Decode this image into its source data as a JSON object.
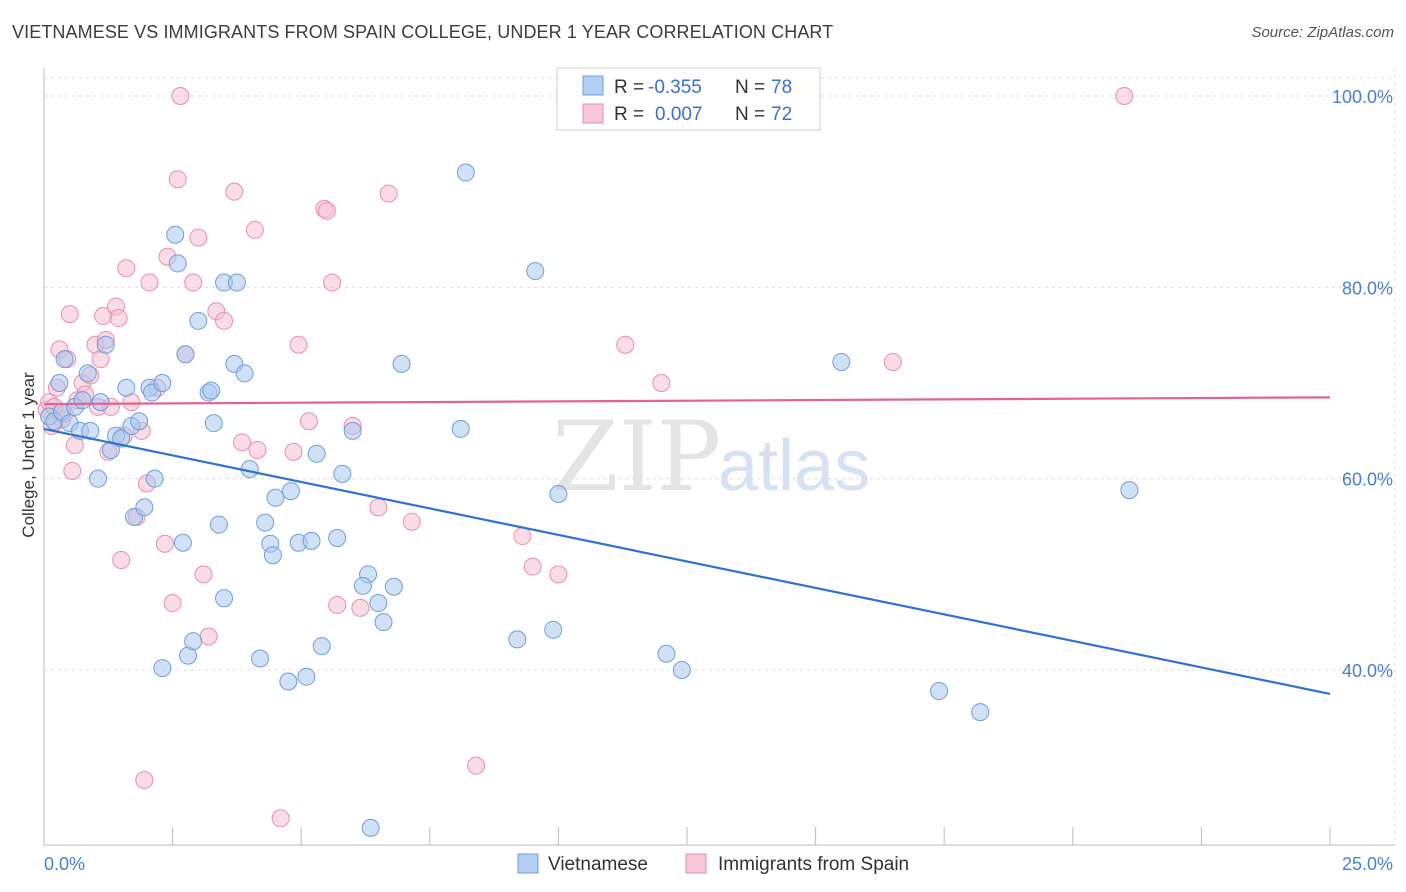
{
  "title": "VIETNAMESE VS IMMIGRANTS FROM SPAIN COLLEGE, UNDER 1 YEAR CORRELATION CHART",
  "source": "Source: ZipAtlas.com",
  "watermark": {
    "zip": "ZIP",
    "atlas": "atlas"
  },
  "legend": {
    "r_label": "R =",
    "n_label": "N =",
    "series": [
      {
        "r": "-0.355",
        "n": "78"
      },
      {
        "r": "0.007",
        "n": "72"
      }
    ]
  },
  "bottom_legend": [
    "Vietnamese",
    "Immigrants from Spain"
  ],
  "colors": {
    "blue_fill": "#a9c8ef",
    "blue_stroke": "#6f9edc",
    "blue_line": "#2f72d2",
    "pink_fill": "#f6bfd1",
    "pink_stroke": "#e88fac",
    "pink_line": "#e3628f",
    "grid": "#dcdcdc"
  },
  "chart_data": {
    "type": "scatter",
    "title": "VIETNAMESE VS IMMIGRANTS FROM SPAIN COLLEGE, UNDER 1 YEAR CORRELATION CHART",
    "xlabel": "",
    "ylabel": "College, Under 1 year",
    "xlim": [
      0,
      25
    ],
    "ylim": [
      20,
      105
    ],
    "x_tick_labels": [
      "0.0%",
      "25.0%"
    ],
    "y_ticks": [
      40,
      60,
      80,
      100
    ],
    "y_tick_labels": [
      "40.0%",
      "60.0%",
      "80.0%",
      "100.0%"
    ],
    "grid": true,
    "legend_position": "top-center",
    "series": [
      {
        "name": "Vietnamese",
        "r": -0.355,
        "n": 78,
        "trend": {
          "x": [
            0,
            25
          ],
          "y": [
            65.2,
            37.5
          ]
        },
        "points": [
          [
            0.1,
            66.5
          ],
          [
            0.2,
            66.0
          ],
          [
            0.3,
            70.0
          ],
          [
            0.35,
            67.0
          ],
          [
            0.4,
            72.5
          ],
          [
            0.5,
            65.8
          ],
          [
            0.6,
            67.5
          ],
          [
            0.7,
            65.0
          ],
          [
            0.75,
            68.2
          ],
          [
            0.85,
            71.0
          ],
          [
            0.9,
            65.0
          ],
          [
            1.05,
            60.0
          ],
          [
            1.1,
            68.0
          ],
          [
            1.2,
            74.0
          ],
          [
            1.3,
            63.0
          ],
          [
            1.4,
            64.5
          ],
          [
            1.5,
            64.2
          ],
          [
            1.6,
            69.5
          ],
          [
            1.7,
            65.5
          ],
          [
            1.75,
            56.0
          ],
          [
            1.85,
            66.0
          ],
          [
            1.95,
            57.0
          ],
          [
            2.05,
            69.5
          ],
          [
            2.1,
            69.0
          ],
          [
            2.15,
            60.0
          ],
          [
            2.3,
            70.0
          ],
          [
            2.3,
            40.2
          ],
          [
            2.55,
            85.5
          ],
          [
            2.6,
            82.5
          ],
          [
            2.7,
            53.3
          ],
          [
            2.75,
            73.0
          ],
          [
            2.8,
            41.5
          ],
          [
            2.9,
            43.0
          ],
          [
            3.0,
            76.5
          ],
          [
            3.2,
            69.0
          ],
          [
            3.25,
            69.2
          ],
          [
            3.3,
            65.8
          ],
          [
            3.4,
            55.2
          ],
          [
            3.5,
            47.5
          ],
          [
            3.5,
            80.5
          ],
          [
            3.7,
            72.0
          ],
          [
            3.75,
            80.5
          ],
          [
            3.9,
            71.0
          ],
          [
            4.0,
            61.0
          ],
          [
            4.2,
            41.2
          ],
          [
            4.3,
            55.4
          ],
          [
            4.4,
            53.2
          ],
          [
            4.45,
            52.0
          ],
          [
            4.5,
            58.0
          ],
          [
            4.75,
            38.8
          ],
          [
            4.8,
            58.7
          ],
          [
            4.95,
            53.3
          ],
          [
            5.1,
            39.3
          ],
          [
            5.2,
            53.5
          ],
          [
            5.3,
            62.6
          ],
          [
            5.4,
            42.5
          ],
          [
            5.7,
            53.8
          ],
          [
            5.8,
            60.5
          ],
          [
            6.0,
            65.0
          ],
          [
            6.3,
            50.0
          ],
          [
            6.2,
            48.8
          ],
          [
            6.35,
            23.5
          ],
          [
            6.5,
            47.0
          ],
          [
            6.6,
            45.0
          ],
          [
            6.8,
            48.7
          ],
          [
            6.95,
            72.0
          ],
          [
            8.1,
            65.2
          ],
          [
            8.2,
            92.0
          ],
          [
            9.2,
            43.2
          ],
          [
            9.55,
            81.7
          ],
          [
            9.9,
            44.2
          ],
          [
            10.0,
            58.4
          ],
          [
            12.1,
            41.7
          ],
          [
            12.4,
            40.0
          ],
          [
            15.5,
            72.2
          ],
          [
            17.4,
            37.8
          ],
          [
            18.2,
            35.6
          ],
          [
            21.1,
            58.8
          ]
        ]
      },
      {
        "name": "Immigrants from Spain",
        "r": 0.007,
        "n": 72,
        "trend": {
          "x": [
            0,
            25
          ],
          "y": [
            67.8,
            68.5
          ]
        },
        "points": [
          [
            0.05,
            67.2
          ],
          [
            0.1,
            68.0
          ],
          [
            0.2,
            67.5
          ],
          [
            0.25,
            69.5
          ],
          [
            0.3,
            73.5
          ],
          [
            0.35,
            66.2
          ],
          [
            0.45,
            72.5
          ],
          [
            0.5,
            77.2
          ],
          [
            0.55,
            60.8
          ],
          [
            0.6,
            63.5
          ],
          [
            0.65,
            68.2
          ],
          [
            0.75,
            70.0
          ],
          [
            0.8,
            68.8
          ],
          [
            0.9,
            70.8
          ],
          [
            1.0,
            74.0
          ],
          [
            1.05,
            67.5
          ],
          [
            1.1,
            72.5
          ],
          [
            1.15,
            77.0
          ],
          [
            1.2,
            74.5
          ],
          [
            1.25,
            62.8
          ],
          [
            1.3,
            67.5
          ],
          [
            1.4,
            78.0
          ],
          [
            1.45,
            76.8
          ],
          [
            1.5,
            51.5
          ],
          [
            1.55,
            64.5
          ],
          [
            1.6,
            82.0
          ],
          [
            1.7,
            68.0
          ],
          [
            1.8,
            56.0
          ],
          [
            1.9,
            65.0
          ],
          [
            1.95,
            28.5
          ],
          [
            2.0,
            59.5
          ],
          [
            2.05,
            80.5
          ],
          [
            2.2,
            69.5
          ],
          [
            2.35,
            53.2
          ],
          [
            2.4,
            83.2
          ],
          [
            2.5,
            47.0
          ],
          [
            2.6,
            91.3
          ],
          [
            2.65,
            100.0
          ],
          [
            2.75,
            73.0
          ],
          [
            2.9,
            80.5
          ],
          [
            3.0,
            85.2
          ],
          [
            3.1,
            50.0
          ],
          [
            3.2,
            43.5
          ],
          [
            3.35,
            77.5
          ],
          [
            3.5,
            76.5
          ],
          [
            3.7,
            90.0
          ],
          [
            3.85,
            63.8
          ],
          [
            4.1,
            86.0
          ],
          [
            4.15,
            63.0
          ],
          [
            4.6,
            24.5
          ],
          [
            4.85,
            62.8
          ],
          [
            4.95,
            74.0
          ],
          [
            5.15,
            66.0
          ],
          [
            5.45,
            88.2
          ],
          [
            5.5,
            88.0
          ],
          [
            5.6,
            80.5
          ],
          [
            5.7,
            46.8
          ],
          [
            6.0,
            65.5
          ],
          [
            6.15,
            46.5
          ],
          [
            6.5,
            57.0
          ],
          [
            6.7,
            89.8
          ],
          [
            7.15,
            55.5
          ],
          [
            8.4,
            30.0
          ],
          [
            9.3,
            54.0
          ],
          [
            9.5,
            50.8
          ],
          [
            10.0,
            50.0
          ],
          [
            11.3,
            74.0
          ],
          [
            12.0,
            70.0
          ],
          [
            16.5,
            72.2
          ],
          [
            21.0,
            100.0
          ],
          [
            0.15,
            65.5
          ],
          [
            0.4,
            66.8
          ]
        ]
      }
    ]
  }
}
